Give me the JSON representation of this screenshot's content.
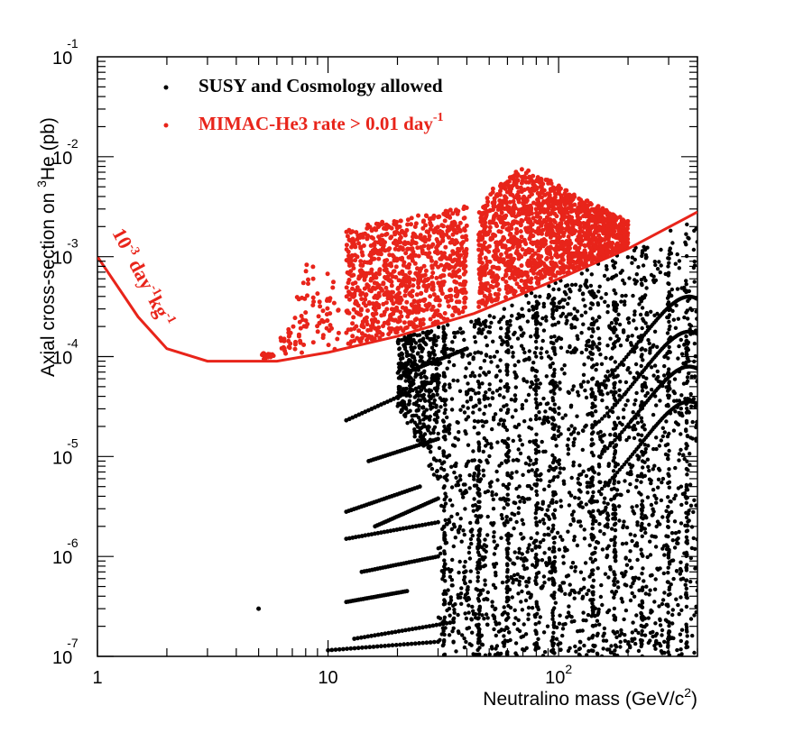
{
  "chart_data": {
    "type": "scatter",
    "x_scale": "log",
    "y_scale": "log",
    "xlim": [
      1,
      400
    ],
    "ylim": [
      1e-07,
      0.1
    ],
    "xlabel": "Neutralino mass (GeV/c",
    "xlabel_sup": "2",
    "xlabel_end": ")",
    "ylabel": "Axial cross-section on ",
    "ylabel_sup": "3",
    "ylabel_end": "He (pb)",
    "x_ticks": [
      {
        "value": 1,
        "base": "1",
        "exp": ""
      },
      {
        "value": 10,
        "base": "10",
        "exp": ""
      },
      {
        "value": 100,
        "base": "10",
        "exp": "2"
      }
    ],
    "y_ticks": [
      {
        "value": 0.1,
        "base": "10",
        "exp": "-1"
      },
      {
        "value": 0.01,
        "base": "10",
        "exp": "-2"
      },
      {
        "value": 0.001,
        "base": "10",
        "exp": "-3"
      },
      {
        "value": 0.0001,
        "base": "10",
        "exp": "-4"
      },
      {
        "value": 1e-05,
        "base": "10",
        "exp": "-5"
      },
      {
        "value": 1e-06,
        "base": "10",
        "exp": "-6"
      },
      {
        "value": 1e-07,
        "base": "10",
        "exp": "-7"
      }
    ],
    "legend": [
      {
        "label": "SUSY and Cosmology allowed",
        "label_sup": "",
        "color": "#000000"
      },
      {
        "label": "MIMAC-He3 rate > 0.01 day",
        "label_sup": "-1",
        "color": "#e8241a"
      }
    ],
    "sensitivity_curve": {
      "label_part1": "10",
      "label_part1_sup": "-3",
      "label_part2": " day",
      "label_part2_sup": "-1",
      "label_part3": "kg",
      "label_part3_sup": "-1",
      "color": "#e8241a",
      "x": [
        1,
        1.5,
        2,
        3,
        6,
        10,
        20,
        43,
        100,
        200,
        400
      ],
      "y": [
        0.001,
        0.00025,
        0.00012,
        9e-05,
        9e-05,
        0.00011,
        0.00016,
        0.00027,
        0.0006,
        0.0012,
        0.0028
      ]
    },
    "series": [
      {
        "name": "SUSY and Cosmology allowed",
        "color": "#000000",
        "description": "dense black band for masses ~20-400 GeV spanning 1e-7 to ~1e-3 pb, with sparse tracks down to ~5 GeV",
        "sample_points": [
          [
            5,
            3e-07
          ],
          [
            10,
            1.2e-07
          ],
          [
            12,
            3e-06
          ],
          [
            12,
            1.5e-06
          ],
          [
            11.5,
            3.5e-07
          ],
          [
            15,
            2e-05
          ],
          [
            18,
            8e-06
          ],
          [
            20,
            1.5e-07
          ],
          [
            25,
            4e-05
          ],
          [
            30,
            0.0001
          ],
          [
            40,
            0.0002
          ],
          [
            60,
            0.0005
          ],
          [
            100,
            0.0008
          ],
          [
            150,
            0.001
          ],
          [
            200,
            0.0012
          ],
          [
            300,
            0.0002
          ],
          [
            400,
            0.0005
          ]
        ]
      },
      {
        "name": "MIMAC-He3 rate > 0.01 day-1",
        "color": "#e8241a",
        "description": "red points above the sensitivity curve, masses ~5-200 GeV, up to ~8e-3 pb",
        "sample_points": [
          [
            5.5,
            9.5e-05
          ],
          [
            8,
            0.001
          ],
          [
            12,
            0.0019
          ],
          [
            20,
            0.0028
          ],
          [
            35,
            0.0031
          ],
          [
            45,
            0.0004
          ],
          [
            60,
            0.005
          ],
          [
            70,
            0.008
          ],
          [
            100,
            0.002
          ],
          [
            180,
            0.0012
          ]
        ]
      }
    ]
  }
}
